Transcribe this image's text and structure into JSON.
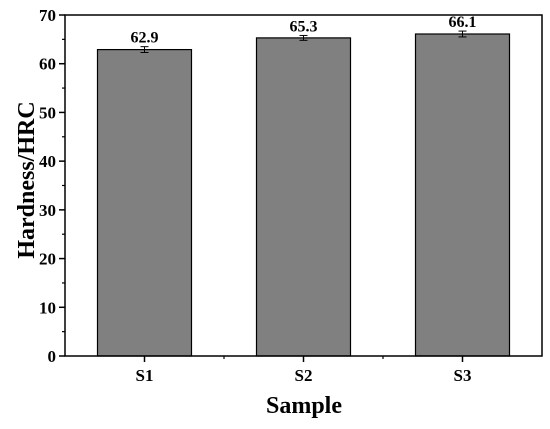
{
  "chart_data": {
    "type": "bar",
    "title": "",
    "xlabel": "Sample",
    "ylabel": "Hardness/HRC",
    "categories": [
      "S1",
      "S2",
      "S3"
    ],
    "values": [
      62.9,
      65.3,
      66.1
    ],
    "value_labels": [
      "62.9",
      "65.3",
      "66.1"
    ],
    "error": [
      0.6,
      0.5,
      0.6
    ],
    "ylim": [
      0,
      70
    ],
    "yticks": [
      0,
      10,
      20,
      30,
      40,
      50,
      60,
      70
    ],
    "ytick_labels": [
      "0",
      "10",
      "20",
      "30",
      "40",
      "50",
      "60",
      "70"
    ],
    "grid": false,
    "legend": "none",
    "colors": {
      "bar_fill": "#808080",
      "bar_stroke": "#000000",
      "axis": "#000000"
    }
  }
}
